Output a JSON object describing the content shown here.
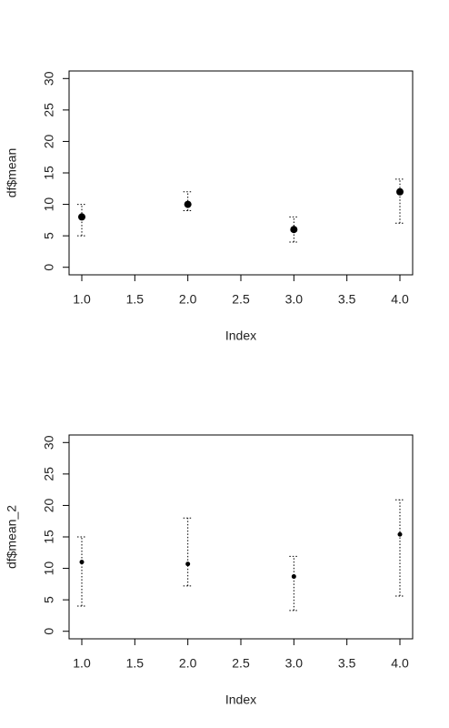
{
  "chart_data": [
    {
      "type": "errorbar",
      "x_label": "Index",
      "y_label": "df$mean",
      "x": [
        1,
        2,
        3,
        4
      ],
      "values": [
        8,
        10,
        6,
        12
      ],
      "lower": [
        5,
        9,
        4,
        7
      ],
      "upper": [
        10,
        12,
        8,
        14
      ],
      "color": "#000000",
      "point_size": 4,
      "xlim": [
        0.88,
        4.12
      ],
      "ylim": [
        -1.2,
        31.2
      ],
      "xticks": [
        {
          "value": 1,
          "label": "1.0"
        },
        {
          "value": 1.5,
          "label": "1.5"
        },
        {
          "value": 2,
          "label": "2.0"
        },
        {
          "value": 2.5,
          "label": "2.5"
        },
        {
          "value": 3,
          "label": "3.0"
        },
        {
          "value": 3.5,
          "label": "3.5"
        },
        {
          "value": 4,
          "label": "4.0"
        }
      ],
      "yticks": [
        0,
        5,
        10,
        15,
        20,
        25,
        30
      ]
    },
    {
      "type": "errorbar",
      "x_label": "Index",
      "y_label": "df$mean_2",
      "x": [
        1,
        2,
        3,
        4
      ],
      "values": [
        11,
        10.7,
        8.7,
        15.4
      ],
      "lower": [
        4,
        7.2,
        3.3,
        5.6
      ],
      "upper": [
        15,
        18,
        11.9,
        20.9
      ],
      "color": "#000000",
      "point_size": 2.5,
      "xlim": [
        0.88,
        4.12
      ],
      "ylim": [
        -1.2,
        31.2
      ],
      "xticks": [
        {
          "value": 1,
          "label": "1.0"
        },
        {
          "value": 1.5,
          "label": "1.5"
        },
        {
          "value": 2,
          "label": "2.0"
        },
        {
          "value": 2.5,
          "label": "2.5"
        },
        {
          "value": 3,
          "label": "3.0"
        },
        {
          "value": 3.5,
          "label": "3.5"
        },
        {
          "value": 4,
          "label": "4.0"
        }
      ],
      "yticks": [
        0,
        5,
        10,
        15,
        20,
        25,
        30
      ]
    }
  ]
}
